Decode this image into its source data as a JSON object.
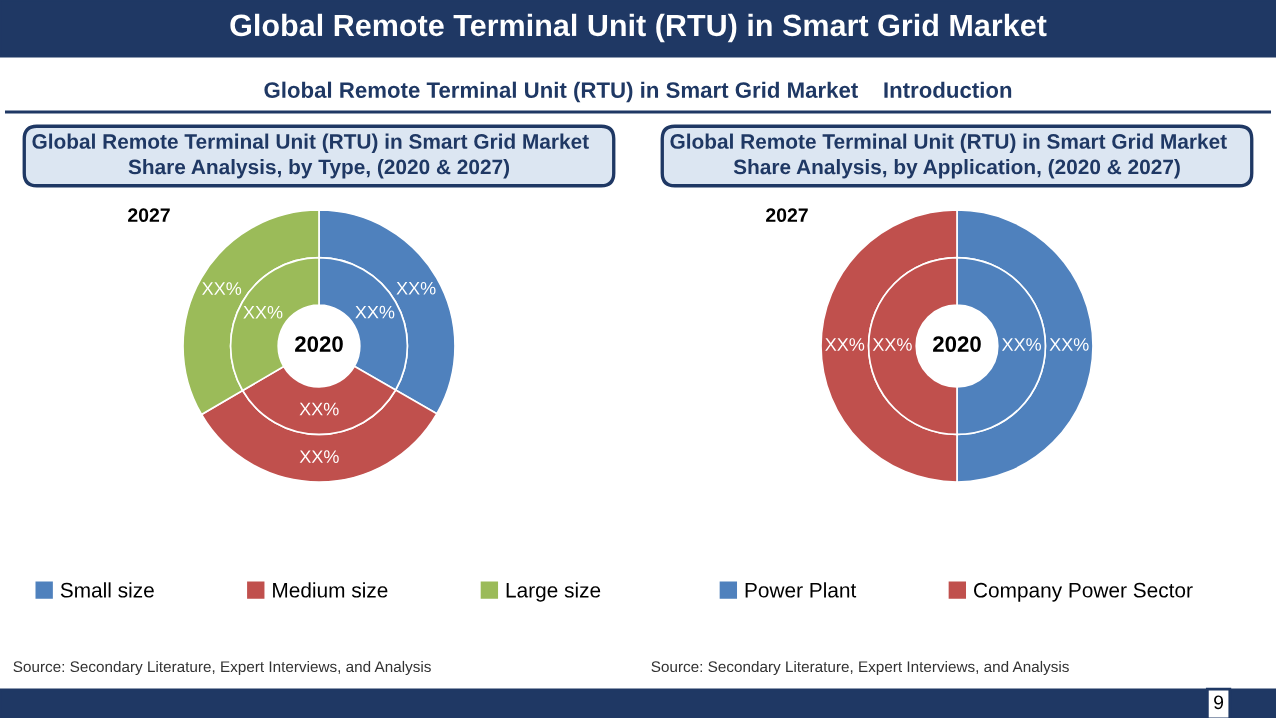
{
  "chart_data": [
    {
      "type": "other",
      "title": "Global Remote Terminal Unit (RTU) in Smart Grid Market",
      "subtitle": "Global Remote Terminal Unit (RTU) in Smart Grid Market    Introduction",
      "annotations": [
        "9"
      ]
    },
    {
      "type": "donut",
      "title": "Global Remote Terminal Unit (RTU) in Smart Grid Market    Share Analysis, by Type, (2020 & 2027)",
      "categories": [
        "Small size",
        "Medium size",
        "Large size"
      ],
      "colors": [
        "#4f81bd",
        "#c0504d",
        "#9bbb59"
      ],
      "legend": "bottom",
      "series": [
        {
          "values": [
            33.3,
            33.3,
            33.4
          ],
          "value_labels": [
            "XX%",
            "XX%",
            "XX%"
          ]
        },
        {
          "values": [
            33.3,
            33.3,
            33.4
          ],
          "value_labels": [
            "XX%",
            "XX%",
            "XX%"
          ]
        }
      ],
      "annotations": [
        "2027",
        "2020",
        "Source: Secondary Literature, Expert Interviews, and Analysis"
      ]
    },
    {
      "type": "donut",
      "title": "Global Remote Terminal Unit (RTU) in Smart Grid Market    Share Analysis, by Application, (2020 & 2027)",
      "categories": [
        "Power Plant",
        "Company Power Sector"
      ],
      "colors": [
        "#4f81bd",
        "#c0504d"
      ],
      "legend": "bottom",
      "series": [
        {
          "values": [
            50,
            50
          ],
          "value_labels": [
            "XX%",
            "XX%"
          ]
        },
        {
          "values": [
            50,
            50
          ],
          "value_labels": [
            "XX%",
            "XX%"
          ]
        }
      ],
      "annotations": [
        "2027",
        "2020",
        "Source: Secondary Literature, Expert Interviews, and Analysis"
      ]
    }
  ]
}
